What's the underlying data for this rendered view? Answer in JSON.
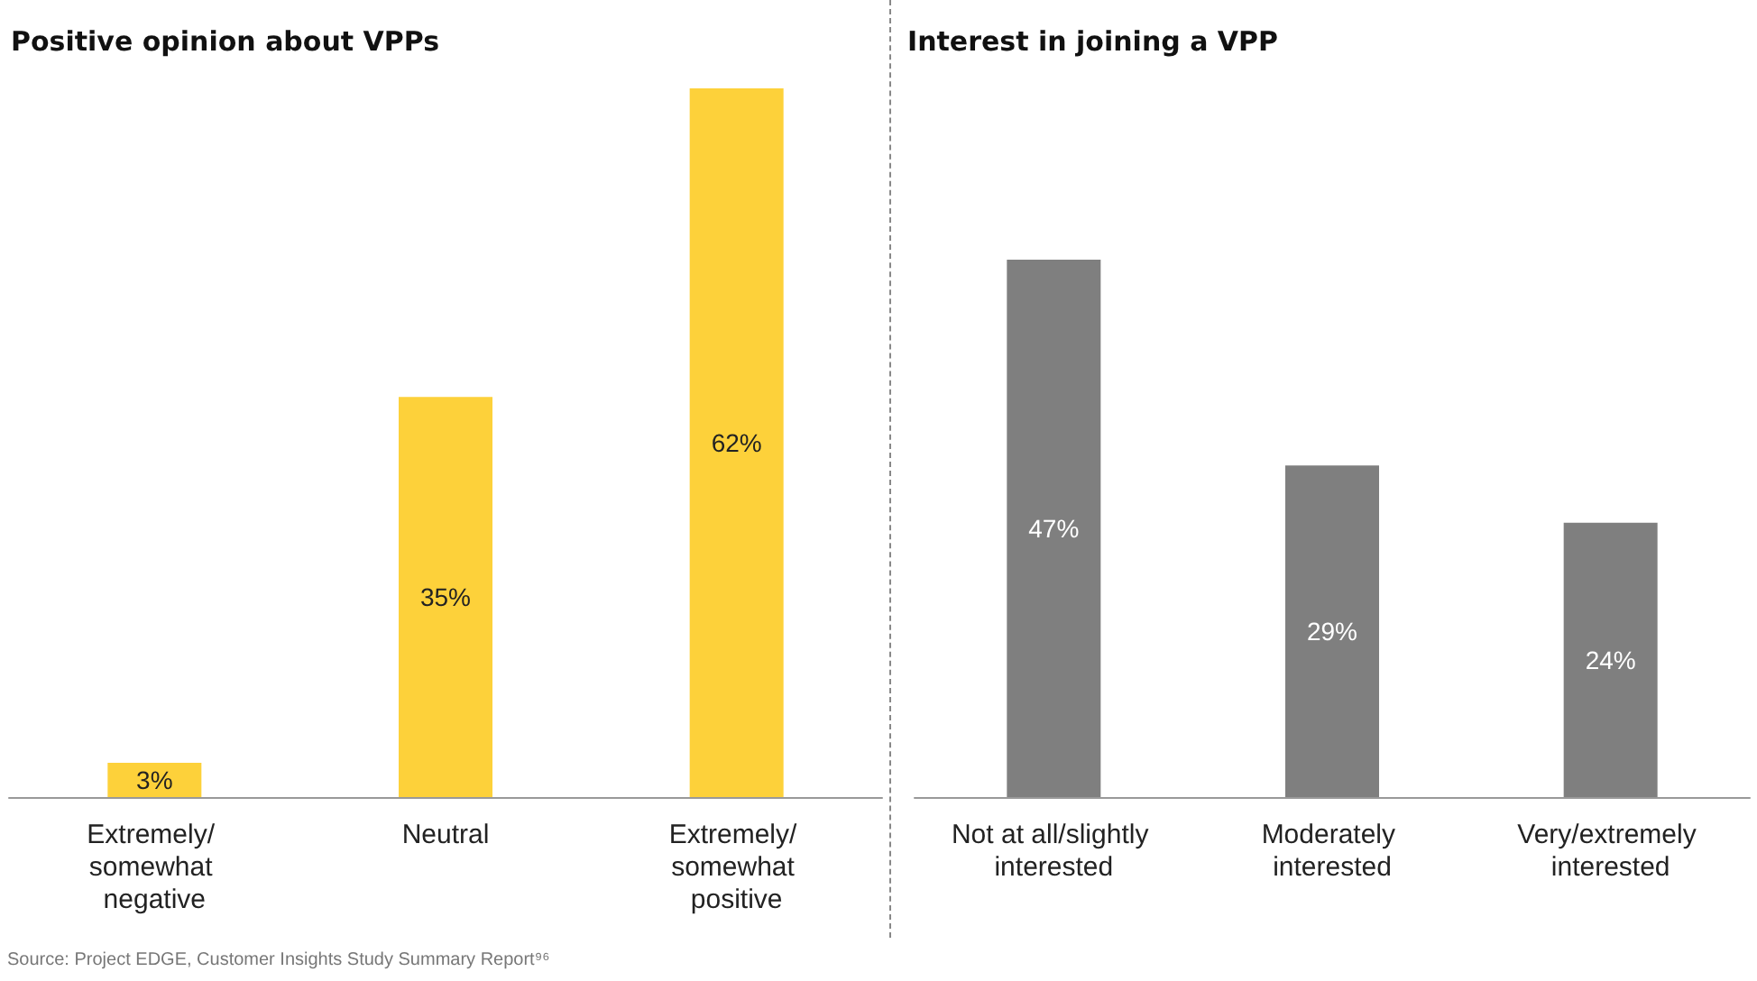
{
  "chart_data": [
    {
      "type": "bar",
      "title": "Positive opinion about VPPs",
      "categories": [
        "Extremely/ somewhat negative",
        "Neutral",
        "Extremely/ somewhat positive"
      ],
      "values": [
        3,
        35,
        62
      ],
      "value_labels": [
        "3%",
        "35%",
        "62%"
      ],
      "color": "#fdd13a",
      "grid": false,
      "annotations": [
        "Source: Project EDGE, Customer Insights Study Summary Report⁹⁶"
      ]
    },
    {
      "type": "bar",
      "title": "Interest in joining a VPP",
      "categories": [
        "Not at all/slightly interested",
        "Moderately interested",
        "Very/extremely interested"
      ],
      "values": [
        47,
        29,
        24
      ],
      "value_labels": [
        "47%",
        "29%",
        "24%"
      ],
      "color": "#7f7f7f",
      "grid": false
    }
  ]
}
